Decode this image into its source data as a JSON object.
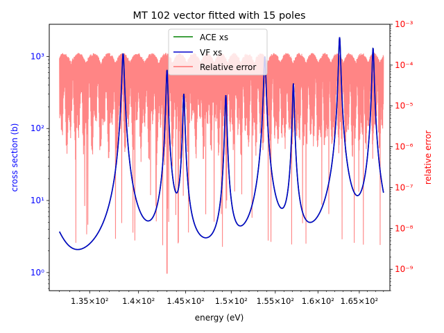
{
  "chart_data": {
    "type": "line",
    "title": "MT 102 vector fitted with 15 poles",
    "xlabel": "energy (eV)",
    "ylabel_left": "cross section (b)",
    "ylabel_right": "relative error",
    "x_scale": "log",
    "y_left_scale": "log",
    "y_right_scale": "log",
    "xlim": [
      131.0,
      168.8
    ],
    "ylim_left": [
      0.56,
      2800
    ],
    "ylim_right": [
      3e-10,
      0.001
    ],
    "x_ticks": [
      135,
      140,
      145,
      150,
      155,
      160,
      165
    ],
    "x_tick_labels": [
      "1.35×10²",
      "1.4×10²",
      "1.45×10²",
      "1.5×10²",
      "1.55×10²",
      "1.6×10²",
      "1.65×10²"
    ],
    "y_left_ticks": [
      1,
      10,
      100,
      1000
    ],
    "y_left_tick_labels": [
      "10⁰",
      "10¹",
      "10²",
      "10³"
    ],
    "y_right_ticks": [
      1e-09,
      1e-08,
      1e-07,
      1e-06,
      1e-05,
      0.0001,
      0.001
    ],
    "y_right_tick_labels": [
      "10⁻⁹",
      "10⁻⁸",
      "10⁻⁷",
      "10⁻⁶",
      "10⁻⁵",
      "10⁻⁴",
      "10⁻³"
    ],
    "legend_position": "upper-center",
    "colors": {
      "ace": "#008000",
      "vf": "#0000cc",
      "error": "#ff7070",
      "left_axis": "#0000ff",
      "right_axis": "#ff0000"
    },
    "x_range": [
      132.0,
      168.0
    ],
    "baseline_point": [
      132.0,
      3.5
    ],
    "resonances": [
      {
        "energy": 138.4,
        "peak": 1100,
        "width": 0.12
      },
      {
        "energy": 143.0,
        "peak": 650,
        "width": 0.1
      },
      {
        "energy": 144.8,
        "peak": 300,
        "width": 0.1
      },
      {
        "energy": 149.4,
        "peak": 290,
        "width": 0.1
      },
      {
        "energy": 153.8,
        "peak": 1000,
        "width": 0.12
      },
      {
        "energy": 157.1,
        "peak": 420,
        "width": 0.1
      },
      {
        "energy": 162.6,
        "peak": 1850,
        "width": 0.12
      },
      {
        "energy": 166.7,
        "peak": 1300,
        "width": 0.12
      }
    ],
    "series": [
      {
        "name": "ACE xs",
        "axis": "left"
      },
      {
        "name": "VF xs",
        "axis": "left"
      },
      {
        "name": "Relative error",
        "axis": "right",
        "max": 0.0002,
        "min": 8e-10
      }
    ]
  }
}
